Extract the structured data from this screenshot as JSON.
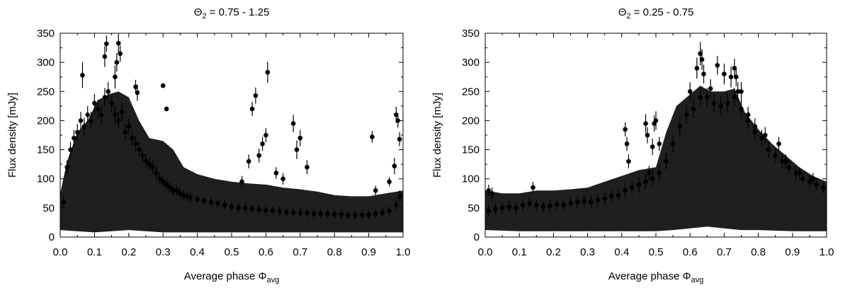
{
  "chart_data": [
    {
      "type": "scatter",
      "title_prefix": "Θ",
      "title_sub": "2",
      "title_suffix": " = 0.75 - 1.25",
      "xlabel_main": "Average phase Φ",
      "xlabel_sub": "avg",
      "ylabel": "Flux density [mJy]",
      "xlim": [
        0.0,
        1.0
      ],
      "ylim": [
        0,
        350
      ],
      "xticks": [
        "0.0",
        "0.1",
        "0.2",
        "0.3",
        "0.4",
        "0.5",
        "0.6",
        "0.7",
        "0.8",
        "0.9",
        "1.0"
      ],
      "yticks": [
        "0",
        "50",
        "100",
        "150",
        "200",
        "250",
        "300",
        "350"
      ],
      "grid": false,
      "marker_color": "#000000",
      "x": [
        0.01,
        0.02,
        0.03,
        0.04,
        0.05,
        0.06,
        0.07,
        0.08,
        0.09,
        0.1,
        0.11,
        0.12,
        0.13,
        0.14,
        0.15,
        0.16,
        0.17,
        0.18,
        0.19,
        0.2,
        0.21,
        0.22,
        0.23,
        0.24,
        0.25,
        0.26,
        0.27,
        0.28,
        0.29,
        0.3,
        0.31,
        0.32,
        0.33,
        0.34,
        0.35,
        0.36,
        0.37,
        0.38,
        0.4,
        0.42,
        0.44,
        0.46,
        0.48,
        0.5,
        0.52,
        0.54,
        0.56,
        0.58,
        0.6,
        0.62,
        0.64,
        0.66,
        0.68,
        0.7,
        0.72,
        0.74,
        0.76,
        0.78,
        0.8,
        0.82,
        0.84,
        0.86,
        0.88,
        0.9,
        0.92,
        0.94,
        0.96,
        0.98,
        0.99,
        0.065,
        0.13,
        0.135,
        0.165,
        0.17,
        0.175,
        0.16,
        0.22,
        0.225,
        0.3,
        0.31,
        0.56,
        0.57,
        0.6,
        0.605,
        0.59,
        0.58,
        0.68,
        0.69,
        0.7,
        0.72,
        0.63,
        0.91,
        0.98,
        0.985,
        0.99,
        0.975,
        0.92,
        0.96,
        0.65,
        0.53,
        0.55
      ],
      "y": [
        60,
        120,
        150,
        170,
        180,
        200,
        190,
        210,
        200,
        230,
        220,
        210,
        240,
        250,
        230,
        210,
        200,
        215,
        180,
        190,
        170,
        160,
        150,
        140,
        130,
        125,
        120,
        110,
        100,
        95,
        90,
        85,
        80,
        80,
        75,
        72,
        70,
        68,
        65,
        62,
        60,
        58,
        55,
        52,
        50,
        50,
        48,
        47,
        46,
        45,
        44,
        43,
        42,
        42,
        41,
        40,
        40,
        40,
        39,
        39,
        38,
        38,
        38,
        38,
        40,
        42,
        45,
        55,
        70,
        278,
        310,
        332,
        300,
        333,
        315,
        275,
        258,
        248,
        260,
        220,
        220,
        243,
        175,
        283,
        160,
        140,
        195,
        150,
        170,
        120,
        110,
        172,
        210,
        200,
        168,
        122,
        80,
        95,
        100,
        95,
        130
      ],
      "errors": [
        10,
        12,
        14,
        14,
        14,
        15,
        15,
        15,
        15,
        16,
        16,
        16,
        16,
        16,
        16,
        16,
        15,
        15,
        15,
        14,
        14,
        13,
        13,
        12,
        12,
        11,
        11,
        10,
        10,
        10,
        10,
        9,
        9,
        9,
        9,
        9,
        9,
        9,
        8,
        8,
        8,
        8,
        8,
        8,
        8,
        8,
        8,
        8,
        8,
        8,
        8,
        8,
        8,
        8,
        8,
        8,
        8,
        8,
        8,
        8,
        8,
        8,
        8,
        8,
        8,
        8,
        8,
        9,
        10,
        22,
        18,
        14,
        16,
        16,
        14,
        20,
        12,
        14,
        4,
        4,
        12,
        14,
        12,
        18,
        12,
        12,
        15,
        16,
        14,
        12,
        10,
        10,
        14,
        12,
        12,
        14,
        8,
        8,
        10,
        10,
        12
      ],
      "band_upper": [
        [
          0.0,
          75
        ],
        [
          0.02,
          130
        ],
        [
          0.05,
          180
        ],
        [
          0.08,
          200
        ],
        [
          0.11,
          235
        ],
        [
          0.14,
          245
        ],
        [
          0.17,
          250
        ],
        [
          0.2,
          240
        ],
        [
          0.23,
          200
        ],
        [
          0.26,
          170
        ],
        [
          0.3,
          165
        ],
        [
          0.33,
          150
        ],
        [
          0.36,
          120
        ],
        [
          0.4,
          108
        ],
        [
          0.45,
          100
        ],
        [
          0.5,
          95
        ],
        [
          0.55,
          92
        ],
        [
          0.6,
          90
        ],
        [
          0.65,
          85
        ],
        [
          0.7,
          82
        ],
        [
          0.75,
          78
        ],
        [
          0.8,
          72
        ],
        [
          0.85,
          70
        ],
        [
          0.9,
          70
        ],
        [
          0.95,
          75
        ],
        [
          1.0,
          80
        ]
      ],
      "band_lower": [
        [
          0.0,
          12
        ],
        [
          0.05,
          10
        ],
        [
          0.1,
          8
        ],
        [
          0.15,
          10
        ],
        [
          0.2,
          12
        ],
        [
          0.25,
          10
        ],
        [
          0.3,
          8
        ],
        [
          0.35,
          8
        ],
        [
          0.4,
          8
        ],
        [
          0.5,
          8
        ],
        [
          0.6,
          8
        ],
        [
          0.7,
          8
        ],
        [
          0.8,
          8
        ],
        [
          0.9,
          8
        ],
        [
          1.0,
          8
        ]
      ]
    },
    {
      "type": "scatter",
      "title_prefix": "Θ",
      "title_sub": "2",
      "title_suffix": " = 0.25 - 0.75",
      "xlabel_main": "Average phase Φ",
      "xlabel_sub": "avg",
      "ylabel": "Flux density [mJy]",
      "xlim": [
        0.0,
        1.0
      ],
      "ylim": [
        0,
        350
      ],
      "xticks": [
        "0.0",
        "0.1",
        "0.2",
        "0.3",
        "0.4",
        "0.5",
        "0.6",
        "0.7",
        "0.8",
        "0.9",
        "1.0"
      ],
      "yticks": [
        "0",
        "50",
        "100",
        "150",
        "200",
        "250",
        "300",
        "350"
      ],
      "grid": false,
      "marker_color": "#000000",
      "x": [
        0.01,
        0.03,
        0.05,
        0.07,
        0.09,
        0.11,
        0.13,
        0.15,
        0.17,
        0.19,
        0.21,
        0.23,
        0.25,
        0.27,
        0.29,
        0.31,
        0.33,
        0.35,
        0.37,
        0.39,
        0.41,
        0.43,
        0.45,
        0.47,
        0.49,
        0.51,
        0.53,
        0.55,
        0.57,
        0.59,
        0.61,
        0.63,
        0.65,
        0.67,
        0.69,
        0.71,
        0.73,
        0.75,
        0.77,
        0.79,
        0.81,
        0.83,
        0.85,
        0.87,
        0.89,
        0.91,
        0.93,
        0.95,
        0.97,
        0.99,
        0.41,
        0.415,
        0.42,
        0.47,
        0.475,
        0.48,
        0.49,
        0.495,
        0.5,
        0.51,
        0.6,
        0.62,
        0.63,
        0.635,
        0.64,
        0.66,
        0.68,
        0.7,
        0.72,
        0.73,
        0.735,
        0.74,
        0.75,
        0.77,
        0.79,
        0.82,
        0.86,
        0.88,
        0.92,
        0.96,
        0.14,
        0.01,
        0.02
      ],
      "y": [
        45,
        48,
        50,
        52,
        50,
        55,
        58,
        55,
        52,
        54,
        56,
        55,
        58,
        60,
        62,
        60,
        64,
        66,
        70,
        72,
        80,
        85,
        90,
        95,
        100,
        110,
        130,
        160,
        190,
        210,
        220,
        240,
        240,
        230,
        225,
        230,
        240,
        220,
        200,
        180,
        170,
        150,
        140,
        130,
        120,
        110,
        100,
        95,
        90,
        85,
        185,
        160,
        130,
        195,
        175,
        110,
        155,
        195,
        200,
        160,
        250,
        290,
        315,
        305,
        280,
        255,
        295,
        280,
        275,
        290,
        275,
        250,
        250,
        210,
        190,
        175,
        160,
        130,
        110,
        100,
        85,
        80,
        75
      ],
      "errors": [
        10,
        10,
        10,
        10,
        10,
        10,
        10,
        10,
        10,
        10,
        10,
        10,
        10,
        10,
        10,
        10,
        10,
        10,
        11,
        11,
        12,
        12,
        13,
        13,
        14,
        14,
        15,
        16,
        16,
        16,
        16,
        16,
        16,
        16,
        16,
        16,
        16,
        16,
        15,
        15,
        14,
        14,
        13,
        13,
        12,
        12,
        11,
        11,
        10,
        10,
        12,
        12,
        12,
        16,
        14,
        12,
        14,
        14,
        16,
        12,
        16,
        18,
        20,
        18,
        16,
        16,
        16,
        18,
        18,
        16,
        16,
        16,
        16,
        14,
        14,
        14,
        12,
        12,
        10,
        10,
        10,
        10,
        10
      ],
      "band_upper": [
        [
          0.0,
          80
        ],
        [
          0.05,
          75
        ],
        [
          0.1,
          75
        ],
        [
          0.15,
          80
        ],
        [
          0.2,
          80
        ],
        [
          0.25,
          82
        ],
        [
          0.3,
          85
        ],
        [
          0.35,
          95
        ],
        [
          0.4,
          105
        ],
        [
          0.45,
          115
        ],
        [
          0.5,
          120
        ],
        [
          0.53,
          180
        ],
        [
          0.56,
          225
        ],
        [
          0.6,
          245
        ],
        [
          0.63,
          260
        ],
        [
          0.66,
          250
        ],
        [
          0.7,
          250
        ],
        [
          0.73,
          255
        ],
        [
          0.76,
          215
        ],
        [
          0.8,
          185
        ],
        [
          0.84,
          160
        ],
        [
          0.88,
          140
        ],
        [
          0.92,
          120
        ],
        [
          0.96,
          105
        ],
        [
          1.0,
          95
        ]
      ],
      "band_lower": [
        [
          0.0,
          12
        ],
        [
          0.1,
          10
        ],
        [
          0.2,
          10
        ],
        [
          0.3,
          10
        ],
        [
          0.4,
          10
        ],
        [
          0.5,
          10
        ],
        [
          0.55,
          12
        ],
        [
          0.6,
          15
        ],
        [
          0.65,
          18
        ],
        [
          0.7,
          15
        ],
        [
          0.75,
          12
        ],
        [
          0.8,
          12
        ],
        [
          0.9,
          10
        ],
        [
          1.0,
          10
        ]
      ]
    }
  ]
}
